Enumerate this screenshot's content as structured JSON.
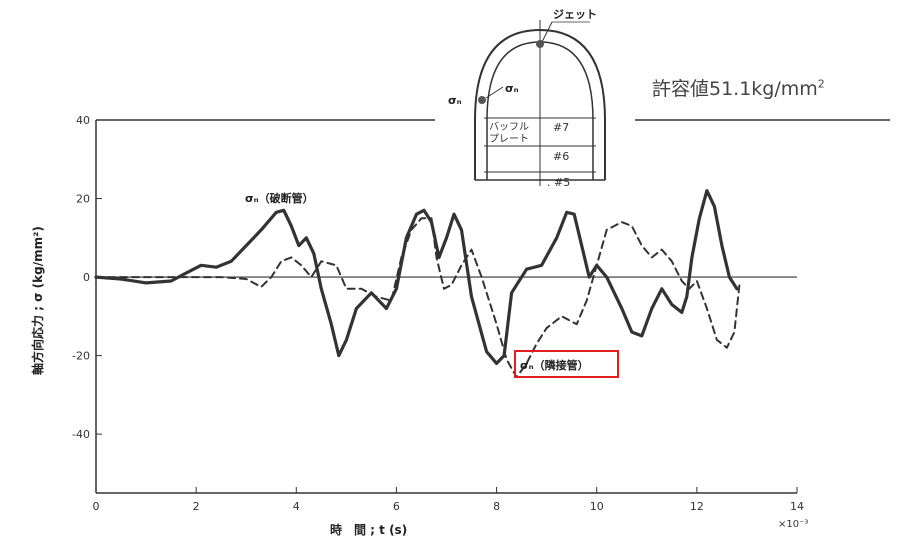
{
  "allowable": {
    "label": "許容値51.1kg/mm",
    "sup": "2"
  },
  "inset": {
    "jet": "ジェット",
    "sigma_n": "σₙ",
    "sigma_n_left": "σₙ",
    "baffle": "バッフル",
    "baffle2": "プレート",
    "r7": "#7",
    "r6": "#6",
    "r5": ". #5"
  },
  "chart_data": {
    "type": "line",
    "xlabel": "時　間 ; t (s)",
    "ylabel": "軸方向応力 ; σ (kg/mm²)",
    "x_multiplier": "×10⁻³",
    "xlim": [
      0,
      14
    ],
    "ylim": [
      -55,
      40
    ],
    "x_ticks": [
      0,
      2,
      4,
      6,
      8,
      10,
      12,
      14
    ],
    "y_ticks": [
      40,
      20,
      0,
      -20,
      -40
    ],
    "grid": false,
    "annotations": [
      {
        "text": "σₙ（破断管）",
        "x": 3.1,
        "y": 20
      },
      {
        "text": "σₙ（隣接管）",
        "x": 8.5,
        "y": -21.5
      }
    ],
    "series": [
      {
        "name": "σₙ（破断管）",
        "style": "solid",
        "color": "#333333",
        "x": [
          0,
          0.5,
          1.0,
          1.5,
          1.8,
          2.1,
          2.4,
          2.7,
          3.0,
          3.3,
          3.6,
          3.75,
          3.9,
          4.05,
          4.2,
          4.35,
          4.5,
          4.7,
          4.85,
          5.0,
          5.2,
          5.5,
          5.8,
          6.0,
          6.2,
          6.4,
          6.55,
          6.7,
          6.85,
          7.0,
          7.15,
          7.3,
          7.5,
          7.8,
          8.0,
          8.15,
          8.3,
          8.6,
          8.9,
          9.2,
          9.4,
          9.55,
          9.7,
          9.85,
          10.0,
          10.2,
          10.5,
          10.7,
          10.9,
          11.1,
          11.3,
          11.5,
          11.7,
          11.8,
          11.9,
          12.05,
          12.2,
          12.35,
          12.5,
          12.65,
          12.8
        ],
        "y": [
          0,
          -0.5,
          -1.5,
          -1.0,
          1.0,
          3.0,
          2.5,
          4.0,
          8.0,
          12.0,
          16.5,
          17.0,
          13.0,
          8.0,
          10.0,
          6.0,
          -3.0,
          -12.0,
          -20.0,
          -16.0,
          -8.0,
          -4.0,
          -8.0,
          -3.0,
          10.0,
          16.0,
          17.0,
          14.0,
          5.0,
          10.0,
          16.0,
          12.0,
          -5.0,
          -19.0,
          -22.0,
          -20.0,
          -4.0,
          2.0,
          3.0,
          10.0,
          16.5,
          16.0,
          8.0,
          0.0,
          3.0,
          0.0,
          -8.0,
          -14.0,
          -15.0,
          -8.0,
          -3.0,
          -7.0,
          -9.0,
          -5.0,
          5.0,
          15.0,
          22.0,
          18.0,
          8.0,
          0.0,
          -3.0
        ]
      },
      {
        "name": "σₙ（隣接管）",
        "style": "dashed",
        "color": "#333333",
        "x": [
          0,
          1.0,
          2.0,
          2.5,
          3.0,
          3.3,
          3.5,
          3.7,
          3.9,
          4.1,
          4.3,
          4.5,
          4.8,
          5.0,
          5.3,
          5.6,
          5.9,
          6.1,
          6.3,
          6.5,
          6.7,
          6.8,
          6.95,
          7.1,
          7.3,
          7.5,
          7.7,
          8.0,
          8.2,
          8.4,
          8.6,
          8.8,
          9.0,
          9.3,
          9.6,
          9.8,
          10.0,
          10.2,
          10.5,
          10.7,
          10.9,
          11.1,
          11.3,
          11.5,
          11.7,
          11.85,
          12.0,
          12.2,
          12.4,
          12.6,
          12.75,
          12.85
        ],
        "y": [
          0,
          0,
          0,
          0,
          -0.5,
          -2.5,
          0.0,
          4.0,
          5.0,
          3.0,
          0.0,
          4.0,
          3.0,
          -3.0,
          -3.0,
          -5.0,
          -6.0,
          5.0,
          12.0,
          15.0,
          15.0,
          5.0,
          -3.0,
          -2.0,
          3.0,
          7.0,
          0.0,
          -12.0,
          -21.0,
          -25.5,
          -22.0,
          -17.0,
          -13.0,
          -10.0,
          -12.0,
          -6.0,
          3.0,
          12.0,
          14.0,
          13.0,
          8.0,
          5.0,
          7.0,
          4.0,
          -1.0,
          -3.0,
          -1.0,
          -8.0,
          -16.0,
          -18.0,
          -14.0,
          -2.0
        ]
      }
    ]
  }
}
